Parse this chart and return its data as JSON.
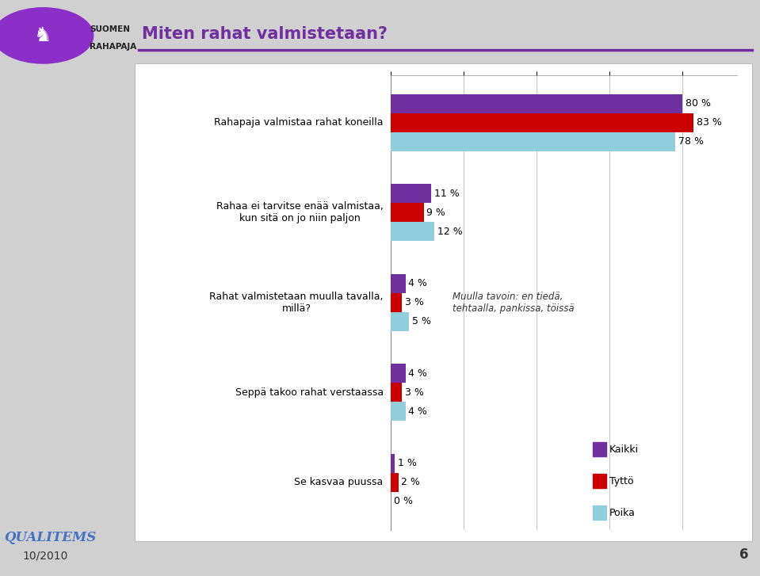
{
  "title": "Miten rahat valmistetaan?",
  "title_color": "#7030A0",
  "bg_color": "#D0D0D0",
  "chart_bg": "#FFFFFF",
  "categories": [
    "Rahapaja valmistaa rahat koneilla",
    "Rahaa ei tarvitse enää valmistaa,\nkun sitä on jo niin paljon",
    "Rahat valmistetaan muulla tavalla,\nmillä?",
    "Seppä takoo rahat verstaassa",
    "Se kasvaa puussa"
  ],
  "kaikki": [
    80,
    11,
    4,
    4,
    1
  ],
  "tytto": [
    83,
    9,
    3,
    3,
    2
  ],
  "poika": [
    78,
    12,
    5,
    4,
    0
  ],
  "color_kaikki": "#7030A0",
  "color_tytto": "#CC0000",
  "color_poika": "#92CDDC",
  "annotation": "Muulla tavoin: en tiedä,\ntehtaalla, pankissa, töissä",
  "legend_labels": [
    "Kaikki",
    "Tyttö",
    "Poika"
  ],
  "footer_text": "10/2010",
  "page_num": "6",
  "logo_line1": "SUOMEN",
  "logo_line2": "RAHAPAJA",
  "qualitems": "QUALITEMS"
}
